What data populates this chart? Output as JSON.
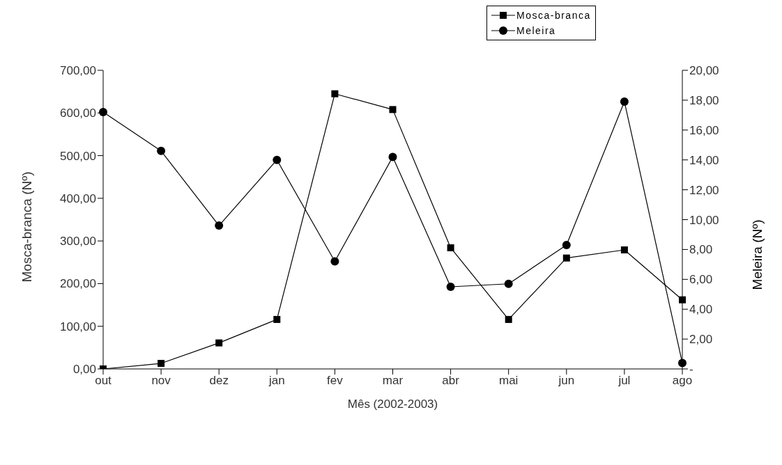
{
  "chart_data": {
    "type": "line",
    "xlabel": "Mês (2002-2003)",
    "ylabel": "Mosca-branca (Nº)",
    "y2label": "Meleira (Nº)",
    "categories": [
      "out",
      "nov",
      "dez",
      "jan",
      "fev",
      "mar",
      "abr",
      "mai",
      "jun",
      "jul",
      "ago"
    ],
    "series": [
      {
        "name": "Mosca-branca",
        "color": "#000000",
        "marker": "square",
        "values": [
          0,
          13,
          61,
          116,
          645,
          608,
          284,
          116,
          260,
          279,
          162
        ]
      },
      {
        "name": "Meleira",
        "color": "#000000",
        "marker": "circle",
        "axis": "y2",
        "values": [
          17.2,
          14.6,
          9.6,
          14.0,
          7.2,
          14.2,
          5.5,
          5.7,
          8.3,
          17.9,
          0.4
        ]
      }
    ],
    "ylim": [
      0,
      700
    ],
    "yticks": [
      {
        "value": 0,
        "label": "0,00"
      },
      {
        "value": 100,
        "label": "100,00"
      },
      {
        "value": 200,
        "label": "200,00"
      },
      {
        "value": 300,
        "label": "300,00"
      },
      {
        "value": 400,
        "label": "400,00"
      },
      {
        "value": 500,
        "label": "500,00"
      },
      {
        "value": 600,
        "label": "600,00"
      },
      {
        "value": 700,
        "label": "700,00"
      }
    ],
    "y2lim": [
      0,
      20
    ],
    "y2ticks": [
      {
        "value": 0,
        "label": "-"
      },
      {
        "value": 2,
        "label": "2,00"
      },
      {
        "value": 4,
        "label": "4,00"
      },
      {
        "value": 6,
        "label": "6,00"
      },
      {
        "value": 8,
        "label": "8,00"
      },
      {
        "value": 10,
        "label": "10,00"
      },
      {
        "value": 12,
        "label": "12,00"
      },
      {
        "value": 14,
        "label": "14,00"
      },
      {
        "value": 16,
        "label": "16,00"
      },
      {
        "value": 18,
        "label": "18,00"
      },
      {
        "value": 20,
        "label": "20,00"
      }
    ],
    "grid": false,
    "legend": "top right",
    "line_style": "solid"
  }
}
